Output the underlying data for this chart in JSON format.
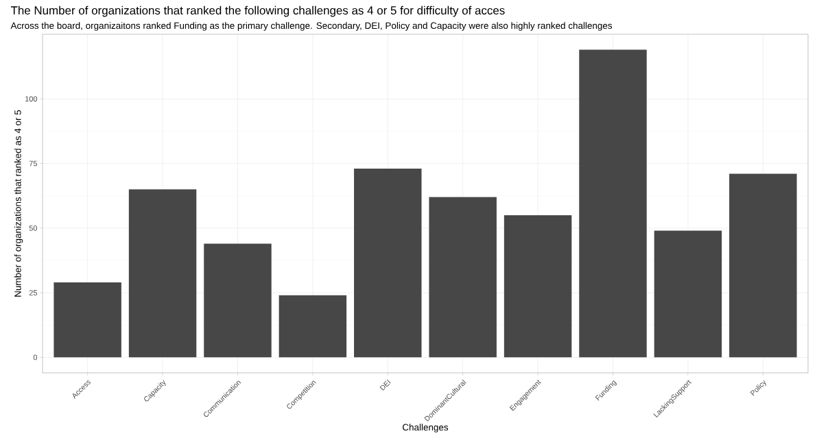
{
  "chart_data": {
    "type": "bar",
    "title": "The Number of organizations that ranked the following challenges as 4 or 5 for difficulty of acces",
    "subtitle": "Across the board, organizaitons ranked Funding as the primary challenge. Secondary, DEI, Policy and Capacity were also highly ranked challenges",
    "xlabel": "Challenges",
    "ylabel": "Number of organizations that ranked as 4 or 5",
    "categories": [
      "Access",
      "Capacity",
      "Communication",
      "Competition",
      "DEI",
      "DominantCultural",
      "Engagement",
      "Funding",
      "LackingSupport",
      "Policy"
    ],
    "values": [
      29,
      65,
      44,
      24,
      73,
      62,
      55,
      119,
      49,
      71
    ],
    "color": "#474747",
    "ylim": [
      -6,
      125
    ],
    "yticks": [
      0,
      25,
      50,
      75,
      100
    ],
    "grid": true
  }
}
